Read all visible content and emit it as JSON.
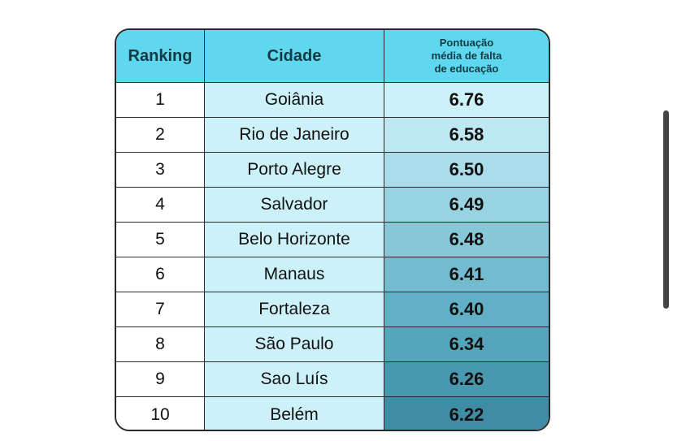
{
  "table": {
    "headers": {
      "ranking": "Ranking",
      "cidade": "Cidade",
      "pontuacao_line1": "Pontuação",
      "pontuacao_line2": "média de falta",
      "pontuacao_line3": "de educação"
    },
    "rows": [
      {
        "rank": "1",
        "city": "Goiânia",
        "score": "6.76",
        "shade": "#cdf1f8"
      },
      {
        "rank": "2",
        "city": "Rio de Janeiro",
        "score": "6.58",
        "shade": "#bde8f1"
      },
      {
        "rank": "3",
        "city": "Porto Alegre",
        "score": "6.50",
        "shade": "#a9dde9"
      },
      {
        "rank": "4",
        "city": "Salvador",
        "score": "6.49",
        "shade": "#98d3e1"
      },
      {
        "rank": "5",
        "city": "Belo Horizonte",
        "score": "6.48",
        "shade": "#86c8d8"
      },
      {
        "rank": "6",
        "city": "Manaus",
        "score": "6.41",
        "shade": "#73bccf"
      },
      {
        "rank": "7",
        "city": "Fortaleza",
        "score": "6.40",
        "shade": "#62b0c5"
      },
      {
        "rank": "8",
        "city": "São Paulo",
        "score": "6.34",
        "shade": "#55a5bb"
      },
      {
        "rank": "9",
        "city": "Sao Luís",
        "score": "6.26",
        "shade": "#4898b0"
      },
      {
        "rank": "10",
        "city": "Belém",
        "score": "6.22",
        "shade": "#3f8ca5"
      }
    ]
  },
  "colors": {
    "header_bg": "#5fd7ee",
    "city_col_bg": "#cdf1f8",
    "border": "#2a2a2a"
  }
}
